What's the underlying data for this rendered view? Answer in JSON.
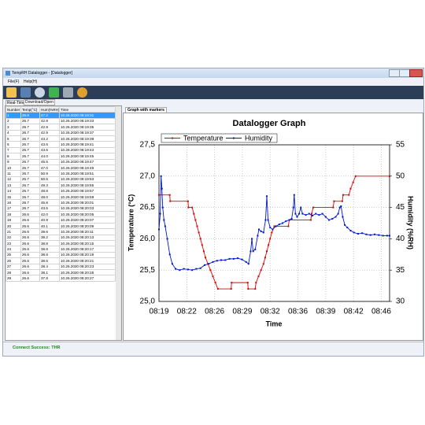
{
  "window": {
    "title": "TempRH Datalogger - [Datalogger]",
    "menu": [
      "File(F)",
      "Help(H)"
    ],
    "tabs": [
      "Real-Time",
      "Download/Open"
    ],
    "graph_tab": "Graph with markers",
    "status": "Connect Success: THR"
  },
  "table": {
    "columns": [
      "Number",
      "Temp(°C)",
      "Hum(%RH)",
      "Time"
    ],
    "rows": [
      [
        "1",
        "26.9",
        "47.2",
        "10.26.2020 08:19:31"
      ],
      [
        "2",
        "26.7",
        "42.9",
        "10.26.2020 08:19:33"
      ],
      [
        "3",
        "26.7",
        "42.9",
        "10.26.2020 08:19:35"
      ],
      [
        "4",
        "26.7",
        "42.9",
        "10.26.2020 08:19:37"
      ],
      [
        "5",
        "26.7",
        "43.2",
        "10.26.2020 08:19:39"
      ],
      [
        "6",
        "26.7",
        "43.6",
        "10.26.2020 08:19:41"
      ],
      [
        "7",
        "26.7",
        "43.6",
        "10.26.2020 08:19:43"
      ],
      [
        "8",
        "26.7",
        "44.0",
        "10.26.2020 08:19:45"
      ],
      [
        "9",
        "26.7",
        "45.5",
        "10.26.2020 08:19:47"
      ],
      [
        "10",
        "26.7",
        "47.0",
        "10.26.2020 08:19:49"
      ],
      [
        "11",
        "26.7",
        "50.9",
        "10.26.2020 08:19:51"
      ],
      [
        "12",
        "26.7",
        "50.6",
        "10.26.2020 08:19:53"
      ],
      [
        "13",
        "26.7",
        "49.3",
        "10.26.2020 08:19:55"
      ],
      [
        "14",
        "26.7",
        "48.8",
        "10.26.2020 08:19:57"
      ],
      [
        "15",
        "26.7",
        "48.0",
        "10.26.2020 08:19:59"
      ],
      [
        "16",
        "26.7",
        "45.8",
        "10.26.2020 08:20:01"
      ],
      [
        "17",
        "26.7",
        "43.5",
        "10.26.2020 08:20:03"
      ],
      [
        "18",
        "26.6",
        "42.0",
        "10.26.2020 08:20:05"
      ],
      [
        "19",
        "26.6",
        "40.9",
        "10.26.2020 08:20:07"
      ],
      [
        "20",
        "26.6",
        "40.1",
        "10.26.2020 08:20:09"
      ],
      [
        "21",
        "26.6",
        "39.6",
        "10.26.2020 08:20:11"
      ],
      [
        "22",
        "26.6",
        "39.2",
        "10.26.2020 08:20:13"
      ],
      [
        "23",
        "26.6",
        "38.8",
        "10.26.2020 08:20:15"
      ],
      [
        "24",
        "26.6",
        "38.8",
        "10.26.2020 08:20:17"
      ],
      [
        "25",
        "26.6",
        "38.8",
        "10.26.2020 08:20:19"
      ],
      [
        "26",
        "26.6",
        "38.6",
        "10.26.2020 08:20:21"
      ],
      [
        "27",
        "26.6",
        "38.4",
        "10.26.2020 08:20:23"
      ],
      [
        "28",
        "26.6",
        "38.1",
        "10.26.2020 08:20:25"
      ],
      [
        "29",
        "26.6",
        "37.8",
        "10.26.2020 08:20:27"
      ]
    ]
  },
  "chart_data": {
    "type": "line",
    "title": "Datalogger Graph",
    "x_label": "Time",
    "y_label": "Temperature (°C)",
    "y2_label": "Humidity (%RH)",
    "grid": true,
    "legend": "top-left",
    "xlim": [
      19.3,
      47.1
    ],
    "xticks": [
      {
        "value": 19.3,
        "label": "08:19"
      },
      {
        "value": 22.65,
        "label": "08:22"
      },
      {
        "value": 26.0,
        "label": "08:26"
      },
      {
        "value": 29.35,
        "label": "08:29"
      },
      {
        "value": 32.7,
        "label": "08:32"
      },
      {
        "value": 36.05,
        "label": "08:36"
      },
      {
        "value": 39.4,
        "label": "08:39"
      },
      {
        "value": 42.75,
        "label": "08:42"
      },
      {
        "value": 46.1,
        "label": "08:46"
      }
    ],
    "ylim": [
      25,
      27.5
    ],
    "yticks": [
      {
        "value": 25,
        "label": "25,0"
      },
      {
        "value": 25.5,
        "label": "25,5"
      },
      {
        "value": 26,
        "label": "26,0"
      },
      {
        "value": 26.5,
        "label": "26,5"
      },
      {
        "value": 27,
        "label": "27,0"
      },
      {
        "value": 27.5,
        "label": "27,5"
      }
    ],
    "y2lim": [
      30,
      55
    ],
    "y2ticks": [
      30,
      35,
      40,
      45,
      50,
      55
    ],
    "series": [
      {
        "name": "Temperature",
        "color": "#e00000",
        "axis": "y",
        "x": [
          19.3,
          20.6,
          20.65,
          22.8,
          22.85,
          23.3,
          23.5,
          23.7,
          23.9,
          24.1,
          24.3,
          24.5,
          24.7,
          24.9,
          25.2,
          25.5,
          25.8,
          26.1,
          26.4,
          28.0,
          28.05,
          30.0,
          30.05,
          30.9,
          31.0,
          31.3,
          31.6,
          31.9,
          32.1,
          32.3,
          32.5,
          32.7,
          32.9,
          33.2,
          34.9,
          35.0,
          37.6,
          37.7,
          37.9,
          40.3,
          40.4,
          41.4,
          41.5,
          42.2,
          42.4,
          42.7,
          43.0,
          47.1
        ],
        "values": [
          26.7,
          26.7,
          26.6,
          26.6,
          26.5,
          26.5,
          26.4,
          26.3,
          26.2,
          26.1,
          26.0,
          25.9,
          25.8,
          25.7,
          25.6,
          25.5,
          25.4,
          25.3,
          25.2,
          25.2,
          25.3,
          25.3,
          25.2,
          25.2,
          25.3,
          25.4,
          25.5,
          25.6,
          25.7,
          25.8,
          25.9,
          26.0,
          26.1,
          26.2,
          26.2,
          26.3,
          26.3,
          26.4,
          26.5,
          26.5,
          26.6,
          26.6,
          26.7,
          26.7,
          26.8,
          26.9,
          27.0,
          27.0
        ]
      },
      {
        "name": "Humidity",
        "color": "#0018c8",
        "axis": "y2",
        "x": [
          19.3,
          19.45,
          19.55,
          19.65,
          19.75,
          19.9,
          20.05,
          20.3,
          20.6,
          20.9,
          21.3,
          21.8,
          22.3,
          22.8,
          23.3,
          23.8,
          24.3,
          24.8,
          25.3,
          25.8,
          26.3,
          26.8,
          27.3,
          27.8,
          28.3,
          28.8,
          29.3,
          29.8,
          30.1,
          30.35,
          30.5,
          30.65,
          30.9,
          31.2,
          31.35,
          31.6,
          31.9,
          32.15,
          32.3,
          32.45,
          32.7,
          33.0,
          33.4,
          33.8,
          34.2,
          34.6,
          35.0,
          35.3,
          35.5,
          35.6,
          35.75,
          35.95,
          36.2,
          36.4,
          36.6,
          37.0,
          37.4,
          37.8,
          38.2,
          38.6,
          39.0,
          39.4,
          39.8,
          40.2,
          40.6,
          40.9,
          41.1,
          41.25,
          41.45,
          41.7,
          42.0,
          42.4,
          42.8,
          43.3,
          43.8,
          44.3,
          44.8,
          45.3,
          45.8,
          46.3,
          46.8,
          47.1
        ],
        "values": [
          41.5,
          44,
          50,
          48,
          45,
          43,
          42,
          40,
          37.5,
          36,
          35.2,
          35,
          35.2,
          35.1,
          35,
          35.2,
          35.3,
          35.8,
          36,
          36.3,
          36.5,
          36.6,
          36.6,
          36.8,
          36.8,
          36.9,
          36.7,
          36.3,
          36,
          38,
          40,
          38,
          38.3,
          40.5,
          41.5,
          41.2,
          41,
          43,
          46.8,
          43,
          41.8,
          41.5,
          42,
          42.3,
          42.5,
          42.8,
          43,
          43.2,
          45,
          47,
          44,
          43.5,
          44,
          45,
          44,
          43.8,
          44,
          43.7,
          44,
          43.8,
          44,
          43.5,
          43,
          43.2,
          43.5,
          44,
          45,
          45.2,
          43.5,
          42.2,
          41.8,
          41.3,
          41,
          40.8,
          40.9,
          40.7,
          40.6,
          40.7,
          40.6,
          40.5,
          40.5,
          40.5
        ]
      }
    ]
  }
}
